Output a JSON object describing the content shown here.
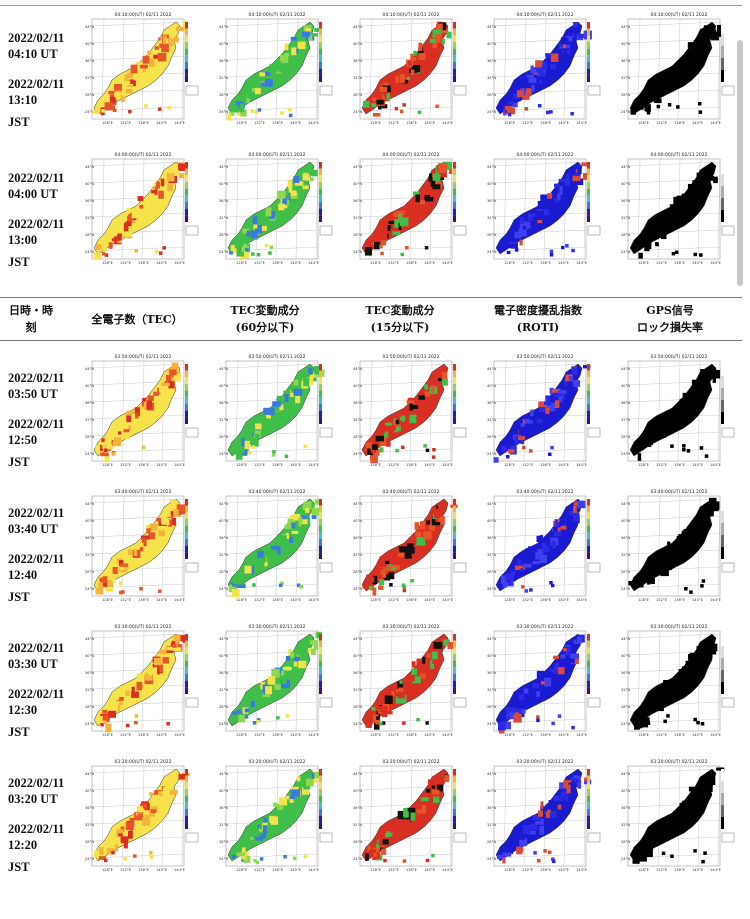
{
  "header": {
    "col_time": [
      "日時・時",
      "刻"
    ],
    "col_tec": [
      "全電子数（TEC）"
    ],
    "col_tec60": [
      "TEC変動成分",
      "(60分以下)"
    ],
    "col_tec15": [
      "TEC変動成分",
      "(15分以下)"
    ],
    "col_roti": [
      "電子密度擾乱指数",
      "(ROTI)"
    ],
    "col_gps": [
      "GPS信号",
      "ロック損失率"
    ]
  },
  "rows": [
    {
      "ut": [
        "2022/02/11",
        "04:10 UT"
      ],
      "jst": [
        "2022/02/11",
        "13:10",
        "JST"
      ],
      "map_title": "04:10:00(UT) 02/11 2022"
    },
    {
      "ut": [
        "2022/02/11",
        "04:00 UT"
      ],
      "jst": [
        "2022/02/11",
        "13:00",
        "JST"
      ],
      "map_title": "04:00:00(UT) 02/11 2022"
    },
    {
      "ut": [
        "2022/02/11",
        "03:50 UT"
      ],
      "jst": [
        "2022/02/11",
        "12:50",
        "JST"
      ],
      "map_title": "03:50:00(UT) 02/11 2022"
    },
    {
      "ut": [
        "2022/02/11",
        "03:40 UT"
      ],
      "jst": [
        "2022/02/11",
        "12:40",
        "JST"
      ],
      "map_title": "03:40:00(UT) 02/11 2022"
    },
    {
      "ut": [
        "2022/02/11",
        "03:30 UT"
      ],
      "jst": [
        "2022/02/11",
        "12:30",
        "JST"
      ],
      "map_title": "03:30:00(UT) 02/11 2022"
    },
    {
      "ut": [
        "2022/02/11",
        "03:20 UT"
      ],
      "jst": [
        "2022/02/11",
        "12:20",
        "JST"
      ],
      "map_title": "03:20:00(UT) 02/11 2022"
    }
  ],
  "map_axis": {
    "lat_labels": [
      "44°N",
      "40°N",
      "36°N",
      "32°N",
      "28°N",
      "24°N"
    ],
    "lon_labels": [
      "128°E",
      "132°E",
      "136°E",
      "140°E",
      "144°E"
    ]
  },
  "colors": {
    "tec": [
      "#f6e24a",
      "#f2b43a",
      "#e8542a",
      "#d92e22"
    ],
    "tec60": [
      "#3fbf4a",
      "#8fd84c",
      "#f0e44a",
      "#3a7ae0"
    ],
    "tec15": [
      "#d92e22",
      "#111111",
      "#3fbf4a",
      "#e8542a"
    ],
    "roti": [
      "#1a1ad0",
      "#2a2ae8",
      "#4040f0",
      "#d84a3a"
    ],
    "gps": [
      "#000000"
    ]
  },
  "columns": [
    "tec",
    "tec60",
    "tec15",
    "roti",
    "gps"
  ]
}
